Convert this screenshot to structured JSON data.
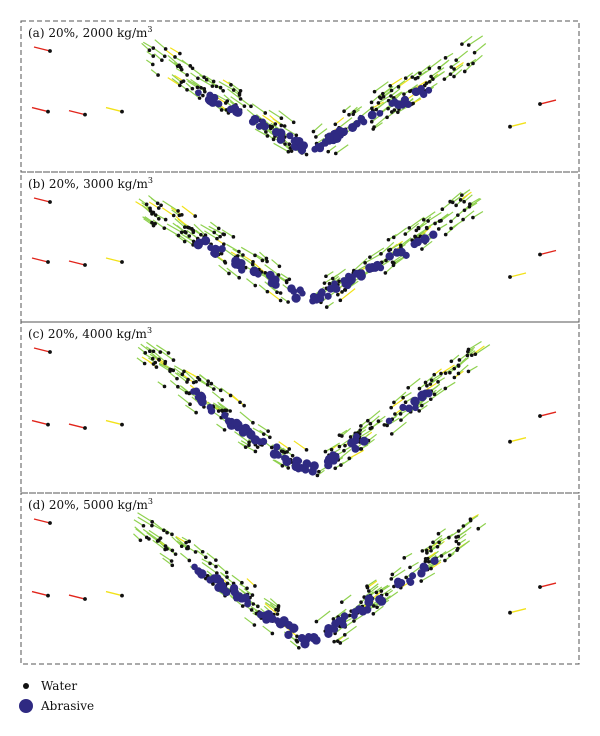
{
  "panels": [
    {
      "id": "a",
      "label_prefix": "(a)  20%, 2000 kg/m",
      "label_sup": "3"
    },
    {
      "id": "b",
      "label_prefix": "(b)  20%, 3000 kg/m",
      "label_sup": "3"
    },
    {
      "id": "c",
      "label_prefix": "(c)  20%, 4000 kg/m",
      "label_sup": "3"
    },
    {
      "id": "d",
      "label_prefix": "(d)  20%, 5000 kg/m",
      "label_sup": "3"
    }
  ],
  "legend": {
    "water_label": "Water",
    "abrasive_label": "Abrasive"
  },
  "colors": {
    "water": "#111111",
    "abrasive": "#2f2a82",
    "vector_slow": "#8fd14f",
    "vector_mid": "#f2e21a",
    "vector_fast": "#e1251b",
    "frame": "#555555"
  }
}
